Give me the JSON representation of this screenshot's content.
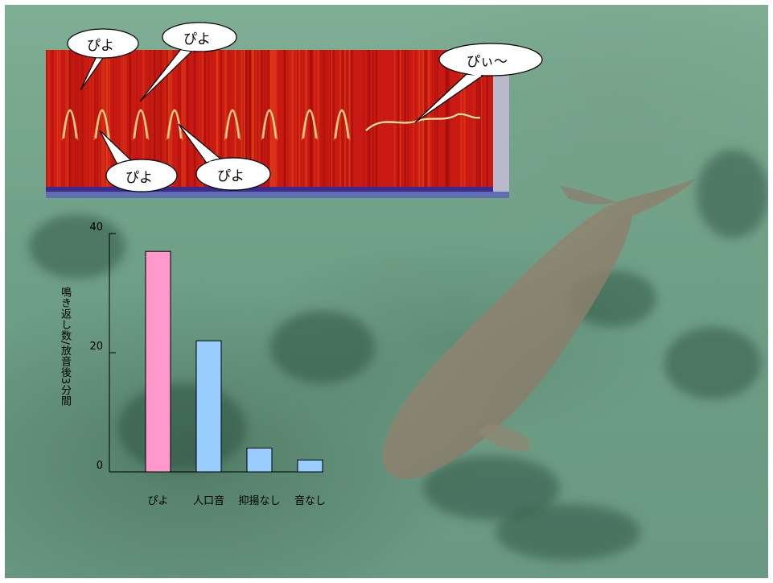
{
  "colors": {
    "water": "#7aa890",
    "spectrogram_bg": "#c81a12",
    "bar_highlight": "#ff99cc",
    "bar_default": "#99ccff"
  },
  "bubbles": [
    {
      "text": "ぴよ"
    },
    {
      "text": "ぴよ"
    },
    {
      "text": "ぴぃ〜"
    },
    {
      "text": "ぴよ"
    },
    {
      "text": "ぴよ"
    }
  ],
  "chart_data": {
    "type": "bar",
    "ylabel": "鳴き返し数/放音後3分間",
    "ylim": [
      0,
      40
    ],
    "yticks": [
      0,
      20,
      40
    ],
    "categories": [
      "ぴよ",
      "人口音",
      "抑揚なし",
      "音なし"
    ],
    "values": [
      37,
      22,
      4,
      2
    ],
    "bar_colors": [
      "#ff99cc",
      "#99ccff",
      "#99ccff",
      "#99ccff"
    ],
    "grid": false
  }
}
